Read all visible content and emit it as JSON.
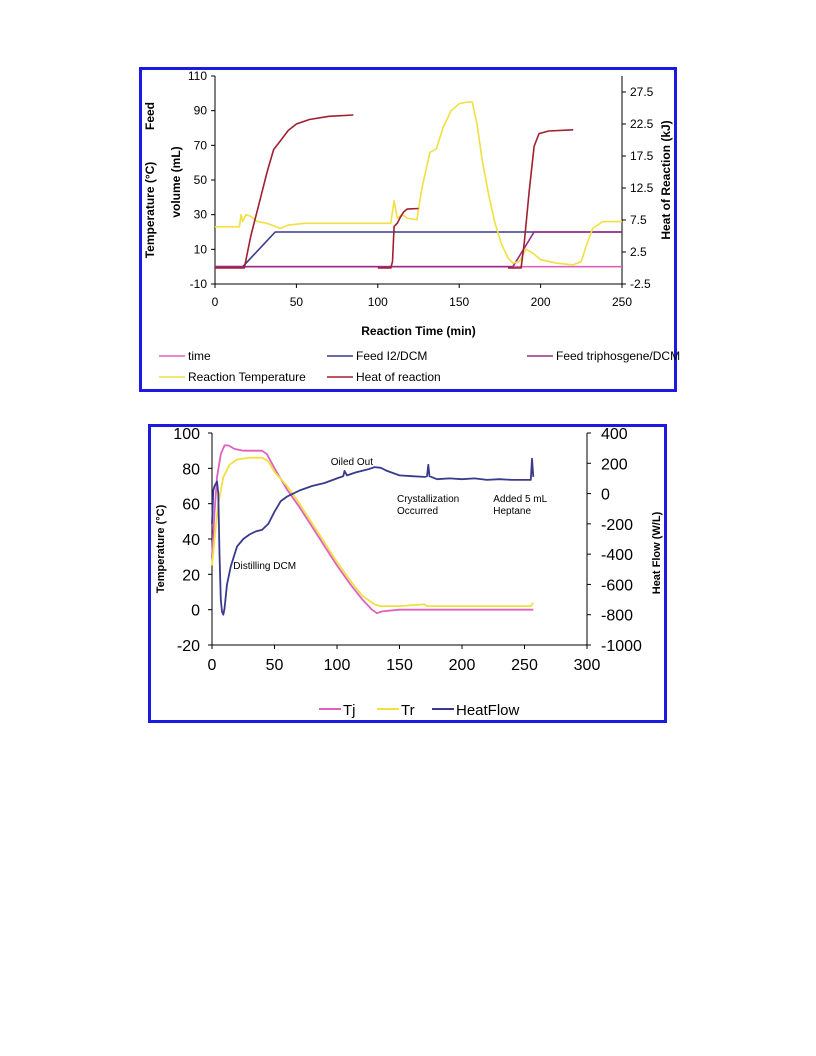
{
  "charts": [
    {
      "type": "line",
      "title": "",
      "xlabel": "Reaction Time (min)",
      "ylabel_left_line1": "Feed",
      "ylabel_left_line2": "volume (mL)",
      "ylabel_left_line3": "Temperature (°C)",
      "ylabel_right": "Heat of Reaction (kJ)",
      "xlim": [
        0,
        250
      ],
      "xticks": [
        0,
        50,
        100,
        150,
        200,
        250
      ],
      "ylim_left": [
        -10,
        110
      ],
      "yticks_left": [
        -10,
        10,
        30,
        50,
        70,
        90,
        110
      ],
      "ylim_right": [
        -2.5,
        30
      ],
      "yticks_right": [
        -2.5,
        2.5,
        7.5,
        12.5,
        17.5,
        22.5,
        27.5
      ],
      "grid": false,
      "legend_position": "bottom",
      "series": [
        {
          "name": "time",
          "axis": "left",
          "color": "#e060c0",
          "points": [
            [
              0,
              0
            ],
            [
              250,
              0
            ]
          ]
        },
        {
          "name": "Feed I2/DCM",
          "axis": "left",
          "color": "#3a3a8c",
          "points": [
            [
              0,
              0
            ],
            [
              17,
              0
            ],
            [
              37,
              20
            ],
            [
              250,
              20
            ]
          ]
        },
        {
          "name": "Feed triphosgene/DCM",
          "axis": "left",
          "color": "#9a2a8a",
          "points": [
            [
              0,
              0
            ],
            [
              183,
              0
            ],
            [
              196,
              20
            ],
            [
              250,
              20
            ]
          ]
        },
        {
          "name": "Reaction Temperature",
          "axis": "left",
          "color": "#f0e040",
          "points": [
            [
              0,
              23
            ],
            [
              15,
              23
            ],
            [
              16,
              30
            ],
            [
              17,
              26
            ],
            [
              19,
              30
            ],
            [
              22,
              29
            ],
            [
              26,
              26
            ],
            [
              32,
              25
            ],
            [
              40,
              22
            ],
            [
              45,
              24
            ],
            [
              55,
              25
            ],
            [
              70,
              25
            ],
            [
              90,
              25
            ],
            [
              108,
              25
            ],
            [
              110,
              38
            ],
            [
              112,
              28
            ],
            [
              115,
              30
            ],
            [
              118,
              28
            ],
            [
              124,
              27
            ],
            [
              127,
              45
            ],
            [
              132,
              66
            ],
            [
              136,
              68
            ],
            [
              140,
              80
            ],
            [
              145,
              90
            ],
            [
              150,
              94
            ],
            [
              155,
              95
            ],
            [
              158,
              95
            ],
            [
              161,
              82
            ],
            [
              164,
              62
            ],
            [
              168,
              42
            ],
            [
              172,
              25
            ],
            [
              176,
              13
            ],
            [
              180,
              5
            ],
            [
              183,
              2
            ],
            [
              187,
              3
            ],
            [
              191,
              10
            ],
            [
              195,
              8
            ],
            [
              200,
              4
            ],
            [
              210,
              2
            ],
            [
              220,
              1
            ],
            [
              225,
              3
            ],
            [
              228,
              12
            ],
            [
              232,
              22
            ],
            [
              238,
              26
            ],
            [
              250,
              26
            ]
          ]
        },
        {
          "name": "Heat of reaction",
          "axis": "right",
          "color": "#a02030",
          "points": [
            [
              0,
              0
            ],
            [
              18,
              0
            ],
            [
              22,
              5
            ],
            [
              28,
              11
            ],
            [
              32,
              15
            ],
            [
              36,
              18.5
            ],
            [
              40,
              19.8
            ],
            [
              45,
              21.5
            ],
            [
              50,
              22.5
            ],
            [
              58,
              23.2
            ],
            [
              70,
              23.7
            ],
            [
              85,
              23.9
            ],
            [
              null,
              null
            ],
            [
              100,
              0
            ],
            [
              108,
              0
            ],
            [
              109,
              1
            ],
            [
              110,
              6.5
            ],
            [
              112,
              7
            ],
            [
              114,
              8
            ],
            [
              116,
              8.8
            ],
            [
              118,
              9.2
            ],
            [
              125,
              9.3
            ],
            [
              null,
              null
            ],
            [
              180,
              0
            ],
            [
              188,
              0
            ],
            [
              190,
              4
            ],
            [
              193,
              12
            ],
            [
              196,
              19
            ],
            [
              199,
              21
            ],
            [
              205,
              21.4
            ],
            [
              220,
              21.6
            ]
          ]
        }
      ]
    },
    {
      "type": "line",
      "title": "",
      "xlabel": "",
      "ylabel_left": "Temperature (°C)",
      "ylabel_right": "Heat Flow (W/L)",
      "xlim": [
        0,
        300
      ],
      "xticks": [
        0,
        50,
        100,
        150,
        200,
        250,
        300
      ],
      "ylim_left": [
        -20,
        100
      ],
      "yticks_left": [
        -20,
        0,
        20,
        40,
        60,
        80,
        100
      ],
      "ylim_right": [
        -1000,
        400
      ],
      "yticks_right": [
        -1000,
        -800,
        -600,
        -400,
        -200,
        0,
        200,
        400
      ],
      "grid": false,
      "legend_position": "bottom",
      "annotations": [
        {
          "text_lines": [
            "Oiled Out"
          ],
          "x": 95,
          "y": 82
        },
        {
          "text_lines": [
            "Crystallization",
            "Occurred"
          ],
          "x": 148,
          "y": 61
        },
        {
          "text_lines": [
            "Added 5 mL",
            "Heptane"
          ],
          "x": 225,
          "y": 61
        },
        {
          "text_lines": [
            "Distilling DCM"
          ],
          "x": 17,
          "y": 23
        }
      ],
      "series": [
        {
          "name": "Tj",
          "axis": "left",
          "color": "#e060c0",
          "points": [
            [
              0,
              30
            ],
            [
              2,
              55
            ],
            [
              4,
              75
            ],
            [
              7,
              88
            ],
            [
              10,
              93
            ],
            [
              13,
              93
            ],
            [
              18,
              91
            ],
            [
              25,
              90
            ],
            [
              40,
              90
            ],
            [
              44,
              88
            ],
            [
              50,
              80
            ],
            [
              60,
              68
            ],
            [
              70,
              58
            ],
            [
              80,
              47
            ],
            [
              90,
              36
            ],
            [
              100,
              25
            ],
            [
              110,
              15
            ],
            [
              120,
              6
            ],
            [
              128,
              0
            ],
            [
              132,
              -2
            ],
            [
              136,
              -1
            ],
            [
              150,
              0
            ],
            [
              180,
              0
            ],
            [
              200,
              0
            ],
            [
              230,
              0
            ],
            [
              257,
              0
            ]
          ]
        },
        {
          "name": "Tr",
          "axis": "left",
          "color": "#f0e040",
          "points": [
            [
              0,
              25
            ],
            [
              2,
              40
            ],
            [
              5,
              60
            ],
            [
              9,
              75
            ],
            [
              14,
              82
            ],
            [
              20,
              85
            ],
            [
              30,
              86
            ],
            [
              40,
              86
            ],
            [
              45,
              84
            ],
            [
              50,
              78
            ],
            [
              60,
              70
            ],
            [
              70,
              60
            ],
            [
              80,
              49
            ],
            [
              90,
              38
            ],
            [
              100,
              27
            ],
            [
              110,
              17
            ],
            [
              120,
              8
            ],
            [
              130,
              3
            ],
            [
              135,
              2
            ],
            [
              150,
              2
            ],
            [
              170,
              3
            ],
            [
              172,
              2
            ],
            [
              200,
              2
            ],
            [
              230,
              2
            ],
            [
              255,
              2
            ],
            [
              257,
              4
            ]
          ]
        },
        {
          "name": "HeatFlow",
          "axis": "right",
          "color": "#3a3a8c",
          "points": [
            [
              0,
              -200
            ],
            [
              1,
              20
            ],
            [
              2,
              50
            ],
            [
              4,
              80
            ],
            [
              5,
              0
            ],
            [
              6,
              -400
            ],
            [
              7,
              -700
            ],
            [
              8,
              -780
            ],
            [
              9,
              -800
            ],
            [
              10,
              -760
            ],
            [
              12,
              -600
            ],
            [
              15,
              -480
            ],
            [
              20,
              -350
            ],
            [
              25,
              -300
            ],
            [
              30,
              -270
            ],
            [
              35,
              -250
            ],
            [
              40,
              -240
            ],
            [
              45,
              -200
            ],
            [
              50,
              -120
            ],
            [
              55,
              -50
            ],
            [
              60,
              -20
            ],
            [
              65,
              0
            ],
            [
              70,
              20
            ],
            [
              80,
              50
            ],
            [
              90,
              70
            ],
            [
              100,
              100
            ],
            [
              105,
              115
            ],
            [
              106,
              150
            ],
            [
              108,
              120
            ],
            [
              115,
              140
            ],
            [
              125,
              160
            ],
            [
              130,
              175
            ],
            [
              135,
              170
            ],
            [
              140,
              150
            ],
            [
              150,
              120
            ],
            [
              160,
              115
            ],
            [
              170,
              110
            ],
            [
              172,
              115
            ],
            [
              173,
              190
            ],
            [
              174,
              115
            ],
            [
              180,
              95
            ],
            [
              190,
              100
            ],
            [
              200,
              95
            ],
            [
              210,
              100
            ],
            [
              220,
              90
            ],
            [
              230,
              95
            ],
            [
              240,
              90
            ],
            [
              250,
              90
            ],
            [
              255,
              90
            ],
            [
              256,
              230
            ],
            [
              257,
              110
            ]
          ]
        }
      ]
    }
  ]
}
